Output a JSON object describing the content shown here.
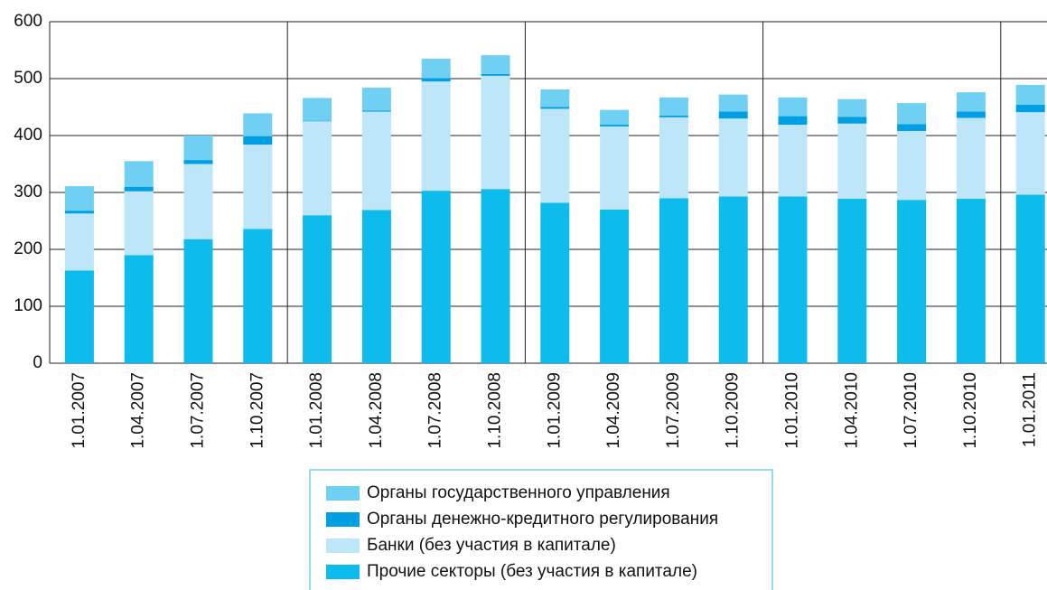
{
  "chart_data": {
    "type": "stacked-bar",
    "categories": [
      "1.01.2007",
      "1.04.2007",
      "1.07.2007",
      "1.10.2007",
      "1.01.2008",
      "1.04.2008",
      "1.07.2008",
      "1.10.2008",
      "1.01.2009",
      "1.04.2009",
      "1.07.2009",
      "1.10.2009",
      "1.01.2010",
      "1.04.2010",
      "1.07.2010",
      "1.10.2010",
      "1.01.2011"
    ],
    "series": [
      {
        "name": "Прочие секторы (без участия в капитале)",
        "color": "#0dbbed",
        "values": [
          163,
          190,
          218,
          236,
          260,
          269,
          303,
          306,
          282,
          270,
          290,
          293,
          293,
          289,
          287,
          289,
          296
        ]
      },
      {
        "name": "Банки (без участия в капитале)",
        "color": "#bde6f8",
        "values": [
          100,
          112,
          132,
          148,
          165,
          173,
          192,
          199,
          165,
          146,
          142,
          137,
          126,
          132,
          121,
          142,
          145
        ]
      },
      {
        "name": "Органы денежно-кредитного регулирования",
        "color": "#009fe3",
        "values": [
          5,
          8,
          7,
          15,
          1,
          2,
          6,
          3,
          3,
          3,
          3,
          12,
          15,
          12,
          12,
          11,
          13
        ]
      },
      {
        "name": "Органы государственного управления",
        "color": "#6fd0f4",
        "values": [
          43,
          45,
          43,
          40,
          40,
          40,
          34,
          33,
          31,
          26,
          32,
          30,
          33,
          31,
          37,
          34,
          35
        ]
      }
    ],
    "ylim": [
      0,
      600
    ],
    "yticks": [
      0,
      100,
      200,
      300,
      400,
      500,
      600
    ],
    "grid": true
  }
}
